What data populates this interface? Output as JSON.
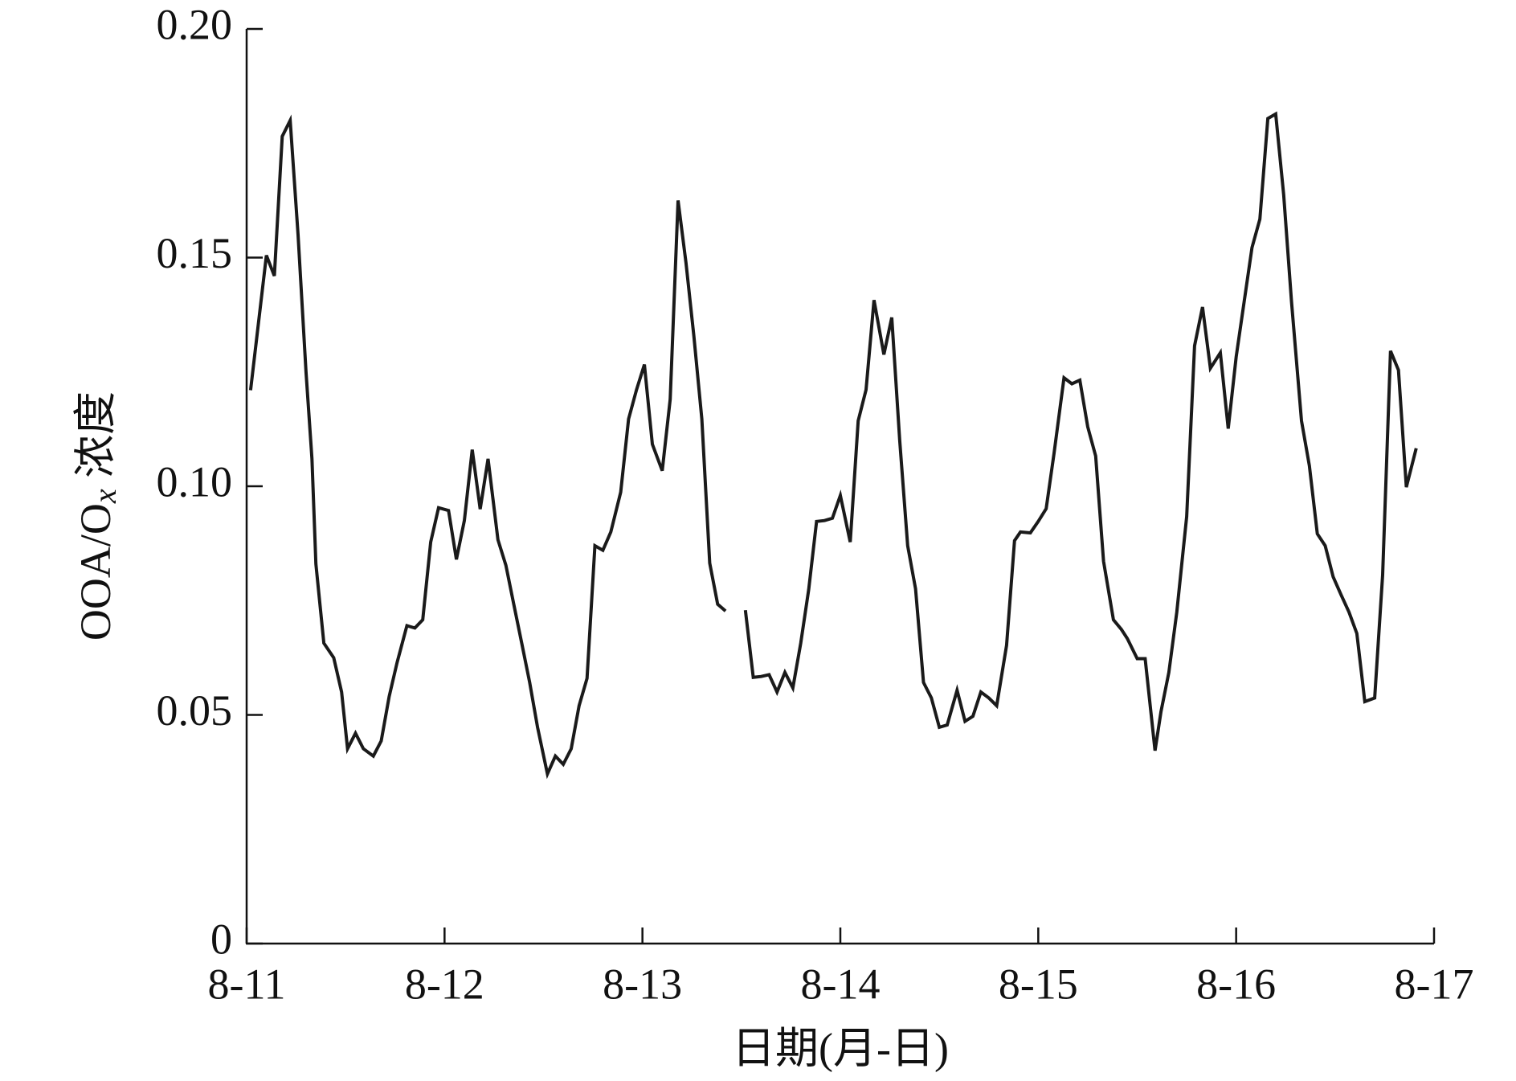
{
  "chart_data": {
    "type": "line",
    "ylabel_parts": [
      "OOA/O",
      "x",
      " 浓度"
    ],
    "xlabel": "日期(月-日)",
    "xlim": [
      11,
      17
    ],
    "xticks": [
      {
        "value": 11,
        "label": "8-11"
      },
      {
        "value": 12,
        "label": "8-12"
      },
      {
        "value": 13,
        "label": "8-13"
      },
      {
        "value": 14,
        "label": "8-14"
      },
      {
        "value": 15,
        "label": "8-15"
      },
      {
        "value": 16,
        "label": "8-16"
      },
      {
        "value": 17,
        "label": "8-17"
      }
    ],
    "ylim": [
      0,
      0.2
    ],
    "yticks": [
      0,
      0.05,
      {
        "value": 0.1,
        "label": "0.10"
      },
      0.15,
      {
        "value": 0.2,
        "label": "0.20"
      }
    ],
    "color": "#1a1a1a",
    "x": [
      11.02,
      11.1,
      11.14,
      11.18,
      11.22,
      11.26,
      11.3,
      11.33,
      11.35,
      11.39,
      11.44,
      11.48,
      11.51,
      11.55,
      11.59,
      11.64,
      11.68,
      11.72,
      11.76,
      11.81,
      11.85,
      11.89,
      11.93,
      11.97,
      12.02,
      12.06,
      12.1,
      12.14,
      12.18,
      12.22,
      12.27,
      12.31,
      12.35,
      12.39,
      12.43,
      12.47,
      12.52,
      12.56,
      12.6,
      12.64,
      12.68,
      12.72,
      12.76,
      12.8,
      12.84,
      12.89,
      12.93,
      12.97,
      13.01,
      13.05,
      13.1,
      13.14,
      13.18,
      13.22,
      13.26,
      13.3,
      13.34,
      13.38,
      13.42,
      13.46,
      13.52,
      13.56,
      13.6,
      13.64,
      13.68,
      13.72,
      13.76,
      13.8,
      13.84,
      13.88,
      13.92,
      13.96,
      14.0,
      14.05,
      14.09,
      14.13,
      14.17,
      14.22,
      14.26,
      14.3,
      14.34,
      14.38,
      14.42,
      14.46,
      14.5,
      14.54,
      14.59,
      14.63,
      14.67,
      14.71,
      14.75,
      14.79,
      14.84,
      14.88,
      14.91,
      14.96,
      15.0,
      15.04,
      15.08,
      15.13,
      15.17,
      15.21,
      15.25,
      15.29,
      15.33,
      15.38,
      15.42,
      15.45,
      15.5,
      15.54,
      15.59,
      15.62,
      15.66,
      15.7,
      15.75,
      15.79,
      15.83,
      15.87,
      15.92,
      15.96,
      16.0,
      16.03,
      16.08,
      16.12,
      16.16,
      16.2,
      16.24,
      16.28,
      16.33,
      16.37,
      16.41,
      16.45,
      16.49,
      16.53,
      16.57,
      16.61,
      16.65,
      16.7,
      16.74,
      16.78,
      16.82,
      16.86,
      16.91
    ],
    "values": [
      0.121,
      0.1505,
      0.146,
      0.1765,
      0.18,
      0.155,
      0.125,
      0.106,
      0.083,
      0.0657,
      0.0625,
      0.055,
      0.0426,
      0.046,
      0.0426,
      0.041,
      0.0443,
      0.054,
      0.0614,
      0.0695,
      0.069,
      0.0708,
      0.0878,
      0.0953,
      0.0947,
      0.084,
      0.0925,
      0.108,
      0.095,
      0.106,
      0.0883,
      0.0827,
      0.0742,
      0.0657,
      0.0571,
      0.0473,
      0.0371,
      0.041,
      0.0392,
      0.0426,
      0.052,
      0.058,
      0.087,
      0.086,
      0.09,
      0.0987,
      0.1147,
      0.1211,
      0.1266,
      0.1092,
      0.1034,
      0.119,
      0.1625,
      0.1488,
      0.1328,
      0.1147,
      0.0832,
      0.0742,
      0.0727,
      null,
      0.0729,
      0.0582,
      0.0584,
      0.0588,
      0.055,
      0.0593,
      0.0559,
      0.0657,
      0.0774,
      0.0923,
      0.0925,
      0.093,
      0.098,
      0.0878,
      0.1143,
      0.1211,
      0.1407,
      0.1288,
      0.1369,
      0.11,
      0.087,
      0.0776,
      0.0571,
      0.0537,
      0.0473,
      0.0478,
      0.0554,
      0.0486,
      0.0497,
      0.055,
      0.0537,
      0.052,
      0.0652,
      0.0881,
      0.09,
      0.0898,
      0.0923,
      0.0951,
      0.1072,
      0.1237,
      0.1224,
      0.1232,
      0.113,
      0.1066,
      0.0836,
      0.0708,
      0.0687,
      0.0667,
      0.0623,
      0.0623,
      0.0422,
      0.0507,
      0.0593,
      0.0725,
      0.0934,
      0.1307,
      0.1392,
      0.1258,
      0.1292,
      0.1126,
      0.1283,
      0.1373,
      0.1522,
      0.1584,
      0.1804,
      0.1814,
      0.1638,
      0.1403,
      0.1143,
      0.1045,
      0.0896,
      0.087,
      0.0802,
      0.0763,
      0.0725,
      0.0678,
      0.0529,
      0.0537,
      0.0806,
      0.1296,
      0.1254,
      0.0998,
      0.1083
    ]
  }
}
